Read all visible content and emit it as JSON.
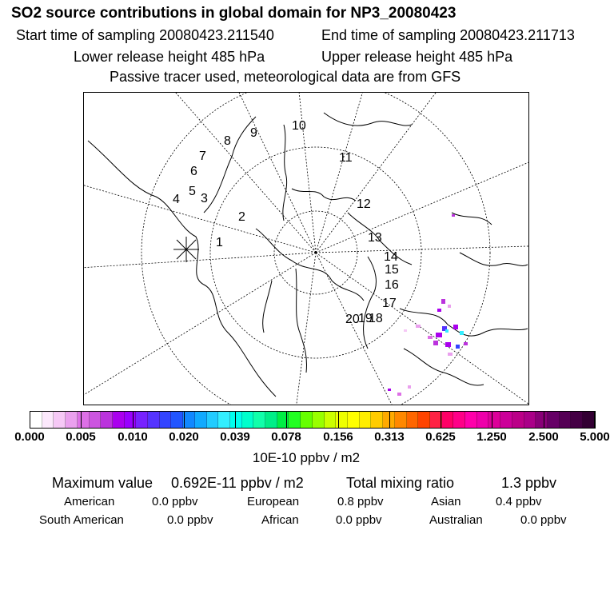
{
  "header": {
    "title": "SO2 source contributions in global domain for NP3_20080423",
    "start_label": "Start time of sampling 20080423.211540",
    "end_label": "End time of sampling 20080423.211713",
    "lower_label": "Lower release height  485 hPa",
    "upper_label": "Upper release height  485 hPa",
    "note": "Passive tracer used, meteorological data are from GFS"
  },
  "map": {
    "sector_labels": [
      "1",
      "2",
      "3",
      "4",
      "5",
      "6",
      "7",
      "8",
      "9",
      "10",
      "11",
      "12",
      "13",
      "14",
      "15",
      "16",
      "17",
      "18",
      "19",
      "20"
    ],
    "marker": "release-location-star"
  },
  "legend": {
    "ticks": [
      "0.000",
      "0.005",
      "0.010",
      "0.020",
      "0.039",
      "0.078",
      "0.156",
      "0.313",
      "0.625",
      "1.250",
      "2.500",
      "5.000"
    ],
    "unit": "10E-10 ppbv / m2",
    "colors": [
      "#ffffff",
      "#fce8fc",
      "#f6c8f6",
      "#eaa0ee",
      "#dd70e6",
      "#cc55e0",
      "#bb33dd",
      "#aa00ee",
      "#9900ff",
      "#7722ff",
      "#5533ff",
      "#3344ff",
      "#2255ff",
      "#1188ff",
      "#11aaff",
      "#22ccff",
      "#33eeff",
      "#00ffee",
      "#00ffcc",
      "#11ffaa",
      "#00ee88",
      "#00ee44",
      "#22ff22",
      "#66ff00",
      "#99ff00",
      "#ccff00",
      "#eeff00",
      "#ffff00",
      "#ffee00",
      "#ffcc00",
      "#ffaa00",
      "#ff8800",
      "#ff6600",
      "#ff4400",
      "#ff2244",
      "#ff0066",
      "#ff0088",
      "#ff00aa",
      "#ee00aa",
      "#dd0099",
      "#cc0099",
      "#bb0088",
      "#aa0088",
      "#880077",
      "#660066",
      "#550055",
      "#440044",
      "#330033"
    ]
  },
  "stats": {
    "max_label": "Maximum value",
    "max_value": "0.692E-11 ppbv / m2",
    "total_label": "Total mixing ratio",
    "total_value": "1.3 ppbv",
    "regions": [
      {
        "name": "American",
        "value": "0.0 ppbv"
      },
      {
        "name": "European",
        "value": "0.8 ppbv"
      },
      {
        "name": "Asian",
        "value": "0.4 ppbv"
      },
      {
        "name": "South American",
        "value": "0.0 ppbv"
      },
      {
        "name": "African",
        "value": "0.0 ppbv"
      },
      {
        "name": "Australian",
        "value": "0.0 ppbv"
      }
    ]
  }
}
